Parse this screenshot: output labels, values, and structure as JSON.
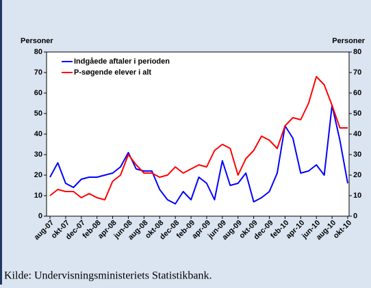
{
  "chart_data": {
    "type": "line",
    "ylabel": "Personer",
    "y2label": "Personer",
    "categories": [
      "aug-07",
      null,
      "okt-07",
      null,
      "dec-07",
      null,
      "feb-08",
      null,
      "apr-08",
      null,
      "jun-08",
      null,
      "aug-08",
      null,
      "okt-08",
      null,
      "dec-08",
      null,
      "feb-09",
      null,
      "apr-09",
      null,
      "jun-09",
      null,
      "aug-09",
      null,
      "okt-09",
      null,
      "dec-09",
      null,
      "feb-10",
      null,
      "apr-10",
      null,
      "jun-10",
      null,
      "aug-10",
      null,
      "okt-10"
    ],
    "series": [
      {
        "name": "Indgåede aftaler i perioden",
        "color": "#0000ff",
        "values": [
          19,
          26,
          16,
          14,
          18,
          19,
          19,
          20,
          21,
          24,
          31,
          23,
          22,
          22,
          13,
          8,
          6,
          12,
          8,
          19,
          16,
          8,
          27,
          15,
          16,
          21,
          7,
          9,
          12,
          21,
          44,
          38,
          21,
          22,
          25,
          20,
          54,
          37,
          16
        ]
      },
      {
        "name": "P-søgende elever i alt",
        "color": "#ff0000",
        "values": [
          10,
          13,
          12,
          12,
          9,
          11,
          9,
          8,
          17,
          20,
          30,
          25,
          21,
          21,
          19,
          20,
          24,
          21,
          23,
          25,
          24,
          32,
          35,
          33,
          20,
          28,
          32,
          39,
          37,
          33,
          44,
          48,
          47,
          55,
          68,
          64,
          54,
          43,
          43
        ]
      }
    ],
    "ylim": [
      0,
      80
    ],
    "yticks": [
      0,
      10,
      20,
      30,
      40,
      50,
      60,
      70,
      80
    ],
    "y2lim": [
      0,
      80
    ],
    "y2ticks": [
      0,
      10,
      20,
      30,
      40,
      50,
      60,
      70,
      80
    ],
    "legend": "upper left"
  },
  "source": "Kilde: Undervisningsministeriets Statistikbank."
}
